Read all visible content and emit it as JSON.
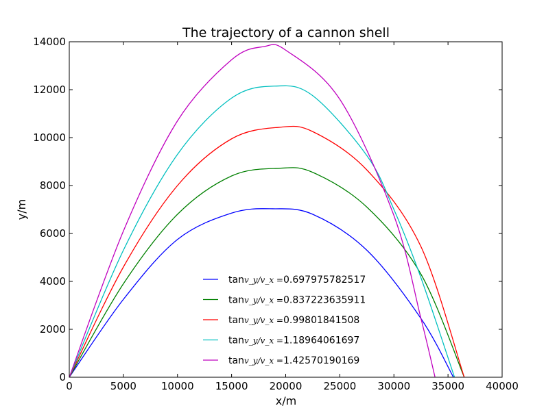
{
  "chart_data": {
    "type": "line",
    "title": "The trajectory of a cannon shell",
    "xlabel": "x/m",
    "ylabel": "y/m",
    "xlim": [
      0,
      40000
    ],
    "ylim": [
      0,
      14000
    ],
    "xticks": [
      "0",
      "5000",
      "10000",
      "15000",
      "20000",
      "25000",
      "30000",
      "35000",
      "40000"
    ],
    "yticks": [
      "0",
      "2000",
      "4000",
      "6000",
      "8000",
      "10000",
      "12000",
      "14000"
    ],
    "grid": false,
    "legend_position": "lower-center",
    "series": [
      {
        "name": "tan v_y/v_x =0.697975782517",
        "legend_prefix": "tan",
        "legend_math": "v_y/v_x =",
        "legend_value": "0.697975782517",
        "color": "#0000ff",
        "x": [
          0,
          5000,
          10000,
          15000,
          18800,
          22500,
          27500,
          32500,
          35500
        ],
        "y": [
          0,
          3250,
          5750,
          6850,
          7030,
          6800,
          5300,
          2450,
          0
        ]
      },
      {
        "name": "tan v_y/v_x =0.837223635911",
        "legend_prefix": "tan",
        "legend_math": "v_y/v_x =",
        "legend_value": "0.837223635911",
        "color": "#008000",
        "x": [
          0,
          5000,
          10000,
          15000,
          19400,
          22500,
          27500,
          32500,
          36500
        ],
        "y": [
          0,
          3900,
          6800,
          8400,
          8720,
          8550,
          7100,
          4300,
          0
        ]
      },
      {
        "name": "tan v_y/v_x =0.99801841508",
        "legend_prefix": "tan",
        "legend_math": "v_y/v_x =",
        "legend_value": "0.99801841508",
        "color": "#ff0000",
        "x": [
          0,
          5000,
          10000,
          15000,
          19400,
          22500,
          27500,
          32500,
          36500
        ],
        "y": [
          0,
          4600,
          8000,
          9950,
          10430,
          10250,
          8650,
          5450,
          0
        ]
      },
      {
        "name": "tan v_y/v_x =1.18964061697",
        "legend_prefix": "tan",
        "legend_math": "v_y/v_x =",
        "legend_value": "1.18964061697",
        "color": "#00bfbf",
        "x": [
          0,
          5000,
          10000,
          15000,
          19000,
          22500,
          27500,
          30000,
          32500,
          35600
        ],
        "y": [
          0,
          5300,
          9300,
          11650,
          12150,
          11750,
          9250,
          7000,
          4150,
          0
        ]
      },
      {
        "name": "tan v_y/v_x =1.42570190169",
        "legend_prefix": "tan",
        "legend_math": "v_y/v_x =",
        "legend_value": "1.42570190169",
        "color": "#bf00bf",
        "x": [
          0,
          5000,
          10000,
          15000,
          18000,
          20000,
          25000,
          30000,
          32500,
          33800
        ],
        "y": [
          0,
          6100,
          10700,
          13250,
          13800,
          13650,
          11600,
          6750,
          2450,
          0
        ]
      }
    ]
  }
}
